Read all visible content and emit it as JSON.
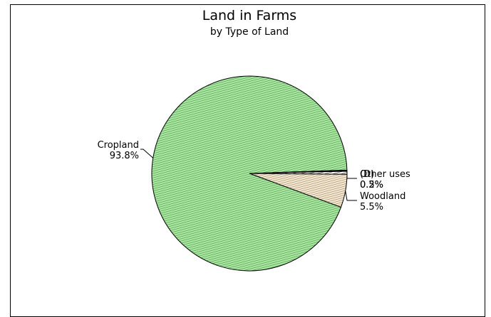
{
  "chart_data": {
    "type": "pie",
    "title": "Land in Farms",
    "subtitle": "by Type of Land",
    "slices": [
      {
        "label": "Cropland",
        "value": 93.8,
        "value_text": "93.8%",
        "color": "#a8e6a0",
        "hatch": "#2e7d32"
      },
      {
        "label": "Woodland",
        "value": 5.5,
        "value_text": "5.5%",
        "color": "#f1e6d2",
        "hatch": "#8a6a3a"
      },
      {
        "label": "Other uses",
        "value": 0.5,
        "value_text": "0.5%",
        "color": "#ffffff",
        "hatch": "#000000"
      },
      {
        "label": "(D)",
        "value": 0.2,
        "value_text": "0.2%",
        "color": "#000000",
        "hatch": "#000000"
      }
    ]
  }
}
